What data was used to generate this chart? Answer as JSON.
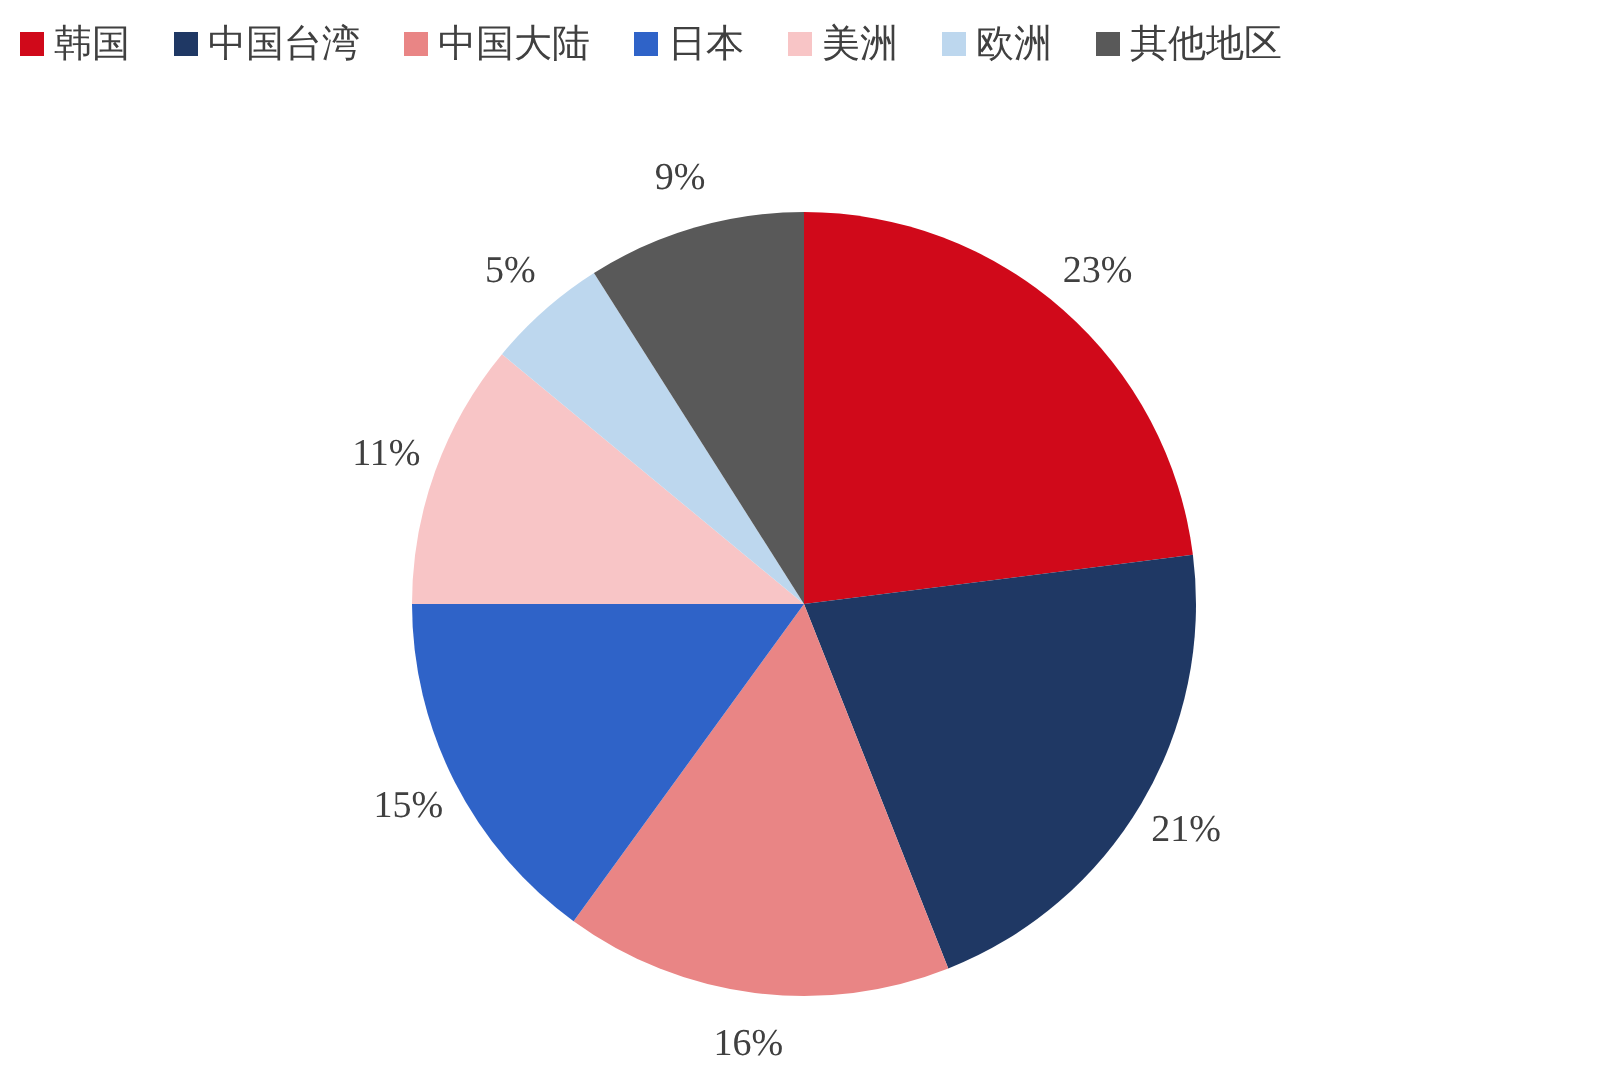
{
  "chart_data": {
    "type": "pie",
    "categories": [
      "韩国",
      "中国台湾",
      "中国大陆",
      "日本",
      "美洲",
      "欧洲",
      "其他地区"
    ],
    "values": [
      23,
      21,
      16,
      15,
      11,
      5,
      9
    ],
    "colors": [
      "#d0091a",
      "#1f3864",
      "#e98585",
      "#2f63c8",
      "#f8c5c6",
      "#bdd7ee",
      "#595959"
    ],
    "value_labels": [
      "23%",
      "21%",
      "16%",
      "15%",
      "11%",
      "5%",
      "9%"
    ],
    "legend": "top"
  }
}
